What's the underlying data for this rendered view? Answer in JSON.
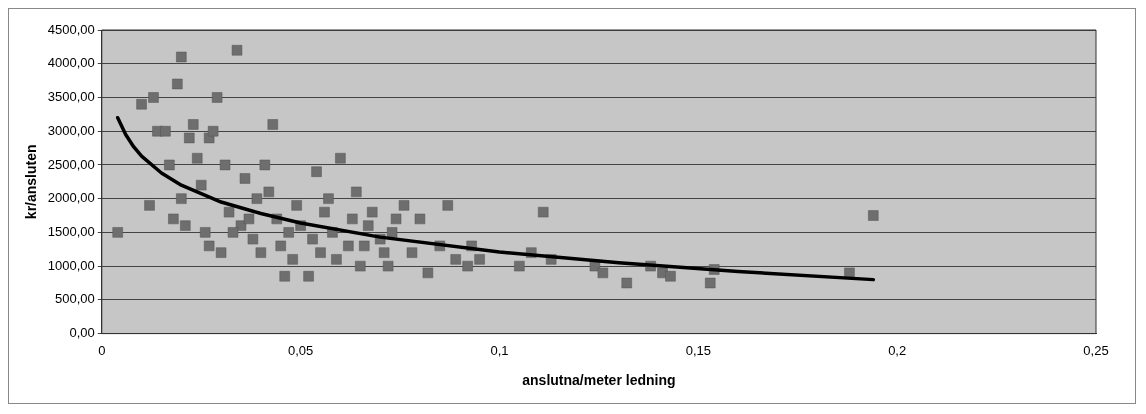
{
  "chart_data": {
    "type": "scatter",
    "xlabel": "anslutna/meter ledning",
    "ylabel": "kr/ansluten",
    "marker": "square",
    "grid": "y",
    "legend": false,
    "xlim": [
      0,
      0.25
    ],
    "xticks": [
      {
        "value": 0,
        "label": "0"
      },
      {
        "value": 0.05,
        "label": "0,05"
      },
      {
        "value": 0.1,
        "label": "0,1"
      },
      {
        "value": 0.15,
        "label": "0,15"
      },
      {
        "value": 0.2,
        "label": "0,2"
      },
      {
        "value": 0.25,
        "label": "0,25"
      }
    ],
    "ylim": [
      0,
      4500
    ],
    "yticks": [
      {
        "value": 0,
        "label": "0,00"
      },
      {
        "value": 500,
        "label": "500,00"
      },
      {
        "value": 1000,
        "label": "1000,00"
      },
      {
        "value": 1500,
        "label": "1500,00"
      },
      {
        "value": 2000,
        "label": "2000,00"
      },
      {
        "value": 2500,
        "label": "2500,00"
      },
      {
        "value": 3000,
        "label": "3000,00"
      },
      {
        "value": 3500,
        "label": "3500,00"
      },
      {
        "value": 4000,
        "label": "4000,00"
      },
      {
        "value": 4500,
        "label": "4500,00"
      }
    ],
    "series": [
      {
        "color": "#6e6e6e",
        "x": [
          0.004,
          0.01,
          0.013,
          0.012,
          0.014,
          0.016,
          0.017,
          0.018,
          0.019,
          0.02,
          0.02,
          0.022,
          0.023,
          0.024,
          0.025,
          0.026,
          0.027,
          0.028,
          0.029,
          0.03,
          0.031,
          0.032,
          0.034,
          0.035,
          0.036,
          0.038,
          0.039,
          0.04,
          0.041,
          0.042,
          0.043,
          0.044,
          0.046,
          0.047,
          0.049,
          0.05,
          0.052,
          0.054,
          0.055,
          0.057,
          0.058,
          0.06,
          0.062,
          0.064,
          0.065,
          0.067,
          0.07,
          0.072,
          0.074,
          0.076,
          0.078,
          0.08,
          0.082,
          0.085,
          0.087,
          0.089,
          0.092,
          0.093,
          0.095,
          0.105,
          0.108,
          0.111,
          0.113,
          0.124,
          0.126,
          0.132,
          0.138,
          0.141,
          0.143,
          0.153,
          0.154,
          0.188,
          0.194,
          0.021,
          0.027,
          0.033,
          0.037,
          0.045,
          0.048,
          0.053,
          0.056,
          0.059,
          0.063,
          0.066,
          0.068,
          0.071,
          0.073
        ],
        "values": [
          1500,
          3400,
          3500,
          1900,
          3000,
          3000,
          2500,
          1700,
          3700,
          4100,
          2000,
          2900,
          3100,
          2600,
          2200,
          1500,
          2900,
          3000,
          3500,
          1200,
          2500,
          1800,
          4200,
          1600,
          2300,
          1400,
          2000,
          1200,
          2500,
          2100,
          3100,
          1700,
          850,
          1500,
          1900,
          1600,
          850,
          2400,
          1200,
          2000,
          1500,
          2600,
          1300,
          2100,
          1000,
          1600,
          1400,
          1000,
          1700,
          1900,
          1200,
          1700,
          900,
          1300,
          1900,
          1100,
          1000,
          1300,
          1100,
          1000,
          1200,
          1800,
          1100,
          1000,
          900,
          750,
          1000,
          900,
          850,
          750,
          950,
          900,
          1750,
          1600,
          1300,
          1500,
          1700,
          1300,
          1100,
          1400,
          1800,
          1100,
          1700,
          1300,
          1800,
          1200,
          1500
        ]
      },
      {
        "type": "line",
        "color": "#000000",
        "marker": "none",
        "x": [
          0.004,
          0.006,
          0.008,
          0.01,
          0.015,
          0.02,
          0.03,
          0.04,
          0.05,
          0.07,
          0.1,
          0.13,
          0.16,
          0.194
        ],
        "values": [
          3200,
          2950,
          2770,
          2630,
          2380,
          2200,
          1950,
          1780,
          1640,
          1430,
          1210,
          1050,
          920,
          800
        ]
      }
    ]
  }
}
